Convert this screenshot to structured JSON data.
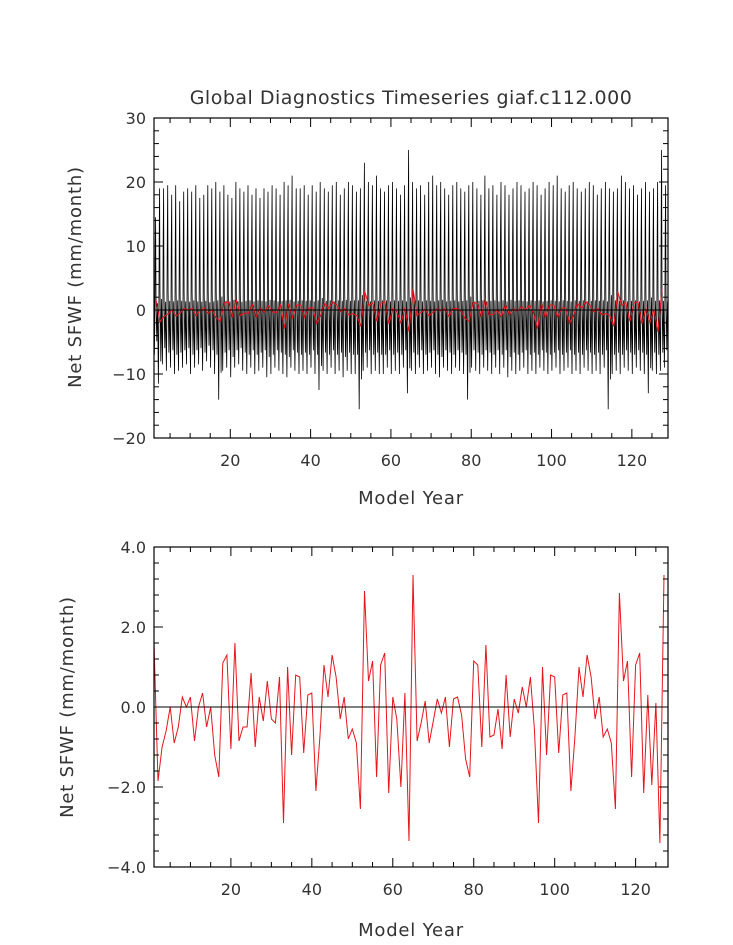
{
  "colors": {
    "monthly": "#000000",
    "annual": "#e8151b",
    "zero_line": "#000000",
    "frame": "#000000"
  },
  "chart_data": [
    {
      "type": "line",
      "title": "Global Diagnostics Timeseries giaf.c112.000",
      "xlabel": "Model Year",
      "ylabel": "Net SFWF (mm/month)",
      "xlim": [
        1,
        129
      ],
      "ylim": [
        -20,
        30
      ],
      "xticks": [
        20,
        40,
        60,
        80,
        100,
        120
      ],
      "yticks": [
        -20,
        -10,
        0,
        10,
        20,
        30
      ],
      "ytick_labels": [
        "−20",
        "−10",
        "0",
        "10",
        "20",
        "30"
      ],
      "zero_line": true,
      "series": [
        {
          "role": "monthly",
          "color": "#000000",
          "values_note_seasonal": false,
          "seasonal_max": [
            14.5,
            19,
            19,
            19.5,
            18,
            19.5,
            17,
            18.5,
            19,
            18.5,
            19.5,
            17.5,
            18,
            19.5,
            19,
            20,
            18.5,
            19.5,
            18,
            17.5,
            20,
            19,
            18.5,
            19.5,
            18,
            19,
            17.5,
            19,
            18.5,
            19.5,
            19,
            18,
            20,
            19.5,
            21,
            19,
            19,
            19.5,
            18,
            19.5,
            18.5,
            20,
            19,
            18.5,
            19.5,
            20,
            18,
            19,
            20,
            19.5,
            18.5,
            19,
            23,
            20,
            19.5,
            21,
            19,
            18.5,
            19.5,
            20,
            19,
            18,
            19.5,
            25,
            20,
            19,
            19.5,
            18,
            20,
            21,
            19.5,
            20,
            19,
            18,
            19.5,
            20,
            19,
            18.5,
            19.5,
            20,
            19,
            18,
            21,
            19,
            19.5,
            18,
            20,
            19.5,
            18,
            19,
            20,
            19.5,
            18.5,
            19,
            20,
            19.5,
            18,
            19,
            20,
            19.5,
            21,
            19,
            18.5,
            19.5,
            20,
            19,
            18.5,
            19,
            20,
            19.5,
            18,
            19,
            20,
            19,
            18.5,
            19,
            21,
            20,
            19,
            19.5,
            18,
            19,
            20,
            18.5,
            19,
            20,
            25,
            19.5
          ],
          "seasonal_min": [
            -7,
            -11.5,
            -8.5,
            -9.5,
            -9,
            -10,
            -9.5,
            -9,
            -8.5,
            -10,
            -9,
            -8.5,
            -9.5,
            -8,
            -9,
            -10,
            -14,
            -9.5,
            -9,
            -10.5,
            -9,
            -8.5,
            -9.5,
            -10,
            -9,
            -10,
            -9.5,
            -9,
            -10.5,
            -10,
            -9,
            -9.5,
            -10,
            -10.5,
            -9,
            -9.5,
            -10,
            -9.5,
            -10,
            -9,
            -10,
            -12.5,
            -9.5,
            -10,
            -9,
            -10,
            -9.5,
            -10.5,
            -9.5,
            -10,
            -10,
            -15.5,
            -9.5,
            -9,
            -10,
            -9.5,
            -10,
            -10,
            -9,
            -10,
            -9.5,
            -10,
            -9,
            -13,
            -9.5,
            -10,
            -9,
            -10,
            -9.5,
            -9,
            -10,
            -10.5,
            -9,
            -9.5,
            -10,
            -9,
            -9.5,
            -10,
            -14,
            -9,
            -9.5,
            -10,
            -9,
            -9.5,
            -10,
            -9,
            -10,
            -9,
            -10.5,
            -9.5,
            -10,
            -9.5,
            -9,
            -10,
            -9.5,
            -10,
            -9,
            -9.5,
            -10,
            -9.5,
            -9,
            -10,
            -9.5,
            -9,
            -10,
            -9.5,
            -10,
            -9,
            -9.5,
            -10,
            -9.5,
            -10,
            -9,
            -15.5,
            -10,
            -9.5,
            -10,
            -9,
            -9.5,
            -10,
            -9,
            -9.5,
            -10,
            -13,
            -9.5,
            -10,
            -9.5,
            -9
          ]
        },
        {
          "role": "annual",
          "color": "#e8151b"
        }
      ]
    },
    {
      "type": "line",
      "title": "",
      "xlabel": "Model Year",
      "ylabel": "Net SFWF (mm/month)",
      "xlim": [
        1,
        128
      ],
      "ylim": [
        -4,
        4
      ],
      "xticks": [
        20,
        40,
        60,
        80,
        100,
        120
      ],
      "yticks": [
        -4,
        -2,
        0,
        2,
        4
      ],
      "ytick_labels": [
        "−4.0",
        "−2.0",
        "0.0",
        "2.0",
        "4.0"
      ],
      "zero_line": true,
      "series": [
        {
          "role": "annual",
          "color": "#e8151b",
          "x": [
            1,
            2,
            3,
            4,
            5,
            6,
            7,
            8,
            9,
            10,
            11,
            12,
            13,
            14,
            15,
            16,
            17,
            18,
            19,
            20,
            21,
            22,
            23,
            24,
            25,
            26,
            27,
            28,
            29,
            30,
            31,
            32,
            33,
            34,
            35,
            36,
            37,
            38,
            39,
            40,
            41,
            42,
            43,
            44,
            45,
            46,
            47,
            48,
            49,
            50,
            51,
            52,
            53,
            54,
            55,
            56,
            57,
            58,
            59,
            60,
            61,
            62,
            63,
            64,
            65,
            66,
            67,
            68,
            69,
            70,
            71,
            72,
            73,
            74,
            75,
            76,
            77,
            78,
            79,
            80,
            81,
            82,
            83,
            84,
            85,
            86,
            87,
            88,
            89,
            90,
            91,
            92,
            93,
            94,
            95,
            96,
            97,
            98,
            99,
            100,
            101,
            102,
            103,
            104,
            105,
            106,
            107,
            108,
            109,
            110,
            111,
            112,
            113,
            114,
            115,
            116,
            117,
            118,
            119,
            120,
            121,
            122,
            123,
            124,
            125,
            126,
            127
          ],
          "y": [
            1.6,
            -1.85,
            -1.0,
            -0.6,
            0.0,
            -0.9,
            -0.5,
            0.25,
            0.0,
            0.25,
            -0.85,
            0.0,
            0.35,
            -0.5,
            0.0,
            -1.2,
            -1.75,
            1.1,
            1.3,
            -1.05,
            1.6,
            -0.85,
            -0.5,
            -0.5,
            0.85,
            -1.0,
            0.25,
            -0.35,
            0.65,
            -0.3,
            -0.4,
            0.75,
            -2.9,
            1.0,
            -1.2,
            0.8,
            0.75,
            -1.15,
            0.3,
            0.35,
            -2.1,
            -0.75,
            1.05,
            0.25,
            1.3,
            0.75,
            -0.3,
            0.25,
            -0.8,
            -0.55,
            -0.9,
            -2.55,
            2.9,
            0.65,
            1.15,
            -1.75,
            1.05,
            1.35,
            -2.15,
            0.25,
            -0.3,
            -2.0,
            0.35,
            -3.35,
            3.3,
            -0.85,
            -0.4,
            0.15,
            -0.9,
            -0.35,
            0.2,
            -0.15,
            0.25,
            -1.0,
            0.2,
            0.25,
            -0.2,
            -1.3,
            -1.75,
            1.15,
            1.05,
            -1.0,
            1.55,
            -0.75,
            -0.7,
            -0.05,
            -1.05,
            0.8,
            -0.75,
            0.2,
            -0.15,
            0.5,
            0.0,
            0.75,
            -0.55,
            -2.9,
            1.0,
            -1.2,
            0.8,
            0.75,
            -1.15,
            0.3,
            0.35,
            -2.1,
            -0.75,
            1.0,
            0.25,
            1.3,
            0.75,
            -0.3,
            0.25,
            -0.75,
            -0.55,
            -0.9,
            -2.55,
            2.85,
            0.65,
            1.15,
            -1.75,
            1.05,
            1.35,
            -2.15,
            0.3,
            -1.95,
            0.1,
            -3.4,
            3.3
          ]
        }
      ]
    }
  ]
}
